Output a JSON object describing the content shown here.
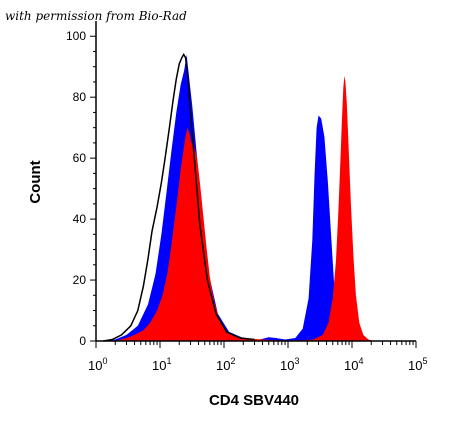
{
  "credit_text": "with permission from Bio-Rad",
  "chart_data": {
    "type": "area",
    "xlabel": "CD4 SBV440",
    "ylabel": "Count",
    "x_scale": "log",
    "xlim": [
      1,
      100000
    ],
    "ylim": [
      0,
      105
    ],
    "y_ticks": [
      0,
      20,
      40,
      60,
      80,
      100
    ],
    "x_ticks": [
      {
        "value": 1,
        "base": "10",
        "exp": "0"
      },
      {
        "value": 10,
        "base": "10",
        "exp": "1"
      },
      {
        "value": 100,
        "base": "10",
        "exp": "2"
      },
      {
        "value": 1000,
        "base": "10",
        "exp": "3"
      },
      {
        "value": 10000,
        "base": "10",
        "exp": "4"
      },
      {
        "value": 100000,
        "base": "10",
        "exp": "5"
      }
    ],
    "series": [
      {
        "key": "black_outline",
        "style": "line",
        "color": "#000000",
        "points": [
          [
            1.3,
            0
          ],
          [
            1.8,
            0.5
          ],
          [
            2.5,
            2
          ],
          [
            3.5,
            5
          ],
          [
            4.5,
            10
          ],
          [
            5.5,
            18
          ],
          [
            6.5,
            27
          ],
          [
            7.5,
            36
          ],
          [
            9,
            44
          ],
          [
            10.5,
            52
          ],
          [
            12,
            60
          ],
          [
            14,
            70
          ],
          [
            16,
            79
          ],
          [
            18,
            86
          ],
          [
            20,
            91
          ],
          [
            22,
            93
          ],
          [
            23.5,
            94
          ],
          [
            25,
            93
          ],
          [
            27,
            88
          ],
          [
            30,
            75
          ],
          [
            35,
            58
          ],
          [
            42,
            38
          ],
          [
            55,
            20
          ],
          [
            75,
            9
          ],
          [
            110,
            3
          ],
          [
            180,
            1
          ],
          [
            300,
            0.5
          ]
        ]
      },
      {
        "key": "blue_peaks",
        "style": "fill",
        "color": "#0000ff",
        "points": [
          [
            1.3,
            0
          ],
          [
            2,
            0.5
          ],
          [
            3,
            2
          ],
          [
            4.5,
            5
          ],
          [
            6.5,
            12
          ],
          [
            8.5,
            22
          ],
          [
            10.5,
            35
          ],
          [
            12.5,
            48
          ],
          [
            15,
            62
          ],
          [
            18,
            75
          ],
          [
            21,
            84
          ],
          [
            24,
            89
          ],
          [
            26,
            94
          ],
          [
            28,
            88
          ],
          [
            32,
            77
          ],
          [
            38,
            60
          ],
          [
            45,
            42
          ],
          [
            58,
            22
          ],
          [
            80,
            9
          ],
          [
            120,
            3
          ],
          [
            200,
            1
          ],
          [
            350,
            0.4
          ],
          [
            500,
            1.2
          ],
          [
            650,
            1
          ],
          [
            900,
            0.5
          ],
          [
            1300,
            1
          ],
          [
            1700,
            4
          ],
          [
            2100,
            14
          ],
          [
            2400,
            33
          ],
          [
            2600,
            55
          ],
          [
            2800,
            70
          ],
          [
            3000,
            74
          ],
          [
            3300,
            73
          ],
          [
            3700,
            67
          ],
          [
            4200,
            52
          ],
          [
            4800,
            32
          ],
          [
            5500,
            12
          ],
          [
            6300,
            3
          ],
          [
            7500,
            0.5
          ],
          [
            9000,
            0
          ]
        ]
      },
      {
        "key": "red_peaks",
        "style": "fill",
        "color": "#ff0000",
        "points": [
          [
            2,
            0
          ],
          [
            3,
            1
          ],
          [
            4,
            2
          ],
          [
            5.5,
            3.5
          ],
          [
            7,
            6
          ],
          [
            9,
            10
          ],
          [
            11,
            15
          ],
          [
            13,
            22
          ],
          [
            15,
            31
          ],
          [
            17,
            40
          ],
          [
            19,
            48
          ],
          [
            21,
            56
          ],
          [
            23,
            62
          ],
          [
            25,
            67
          ],
          [
            27,
            70
          ],
          [
            29,
            68
          ],
          [
            31,
            65
          ],
          [
            33,
            65
          ],
          [
            35,
            63
          ],
          [
            38,
            60
          ],
          [
            42,
            52
          ],
          [
            47,
            42
          ],
          [
            53,
            31
          ],
          [
            60,
            21
          ],
          [
            70,
            13
          ],
          [
            85,
            7
          ],
          [
            110,
            3
          ],
          [
            150,
            1.5
          ],
          [
            250,
            0.8
          ],
          [
            450,
            0.4
          ],
          [
            700,
            0.2
          ],
          [
            1500,
            0.2
          ],
          [
            2500,
            0.5
          ],
          [
            3500,
            2
          ],
          [
            4300,
            6
          ],
          [
            5000,
            14
          ],
          [
            5600,
            26
          ],
          [
            6100,
            42
          ],
          [
            6600,
            60
          ],
          [
            7000,
            74
          ],
          [
            7300,
            83
          ],
          [
            7600,
            87
          ],
          [
            7900,
            85
          ],
          [
            8300,
            78
          ],
          [
            8900,
            62
          ],
          [
            9600,
            45
          ],
          [
            10500,
            28
          ],
          [
            11500,
            15
          ],
          [
            13000,
            6
          ],
          [
            15000,
            2
          ],
          [
            18000,
            0.5
          ],
          [
            22000,
            0
          ]
        ]
      }
    ],
    "grid": false,
    "legend": "none"
  }
}
